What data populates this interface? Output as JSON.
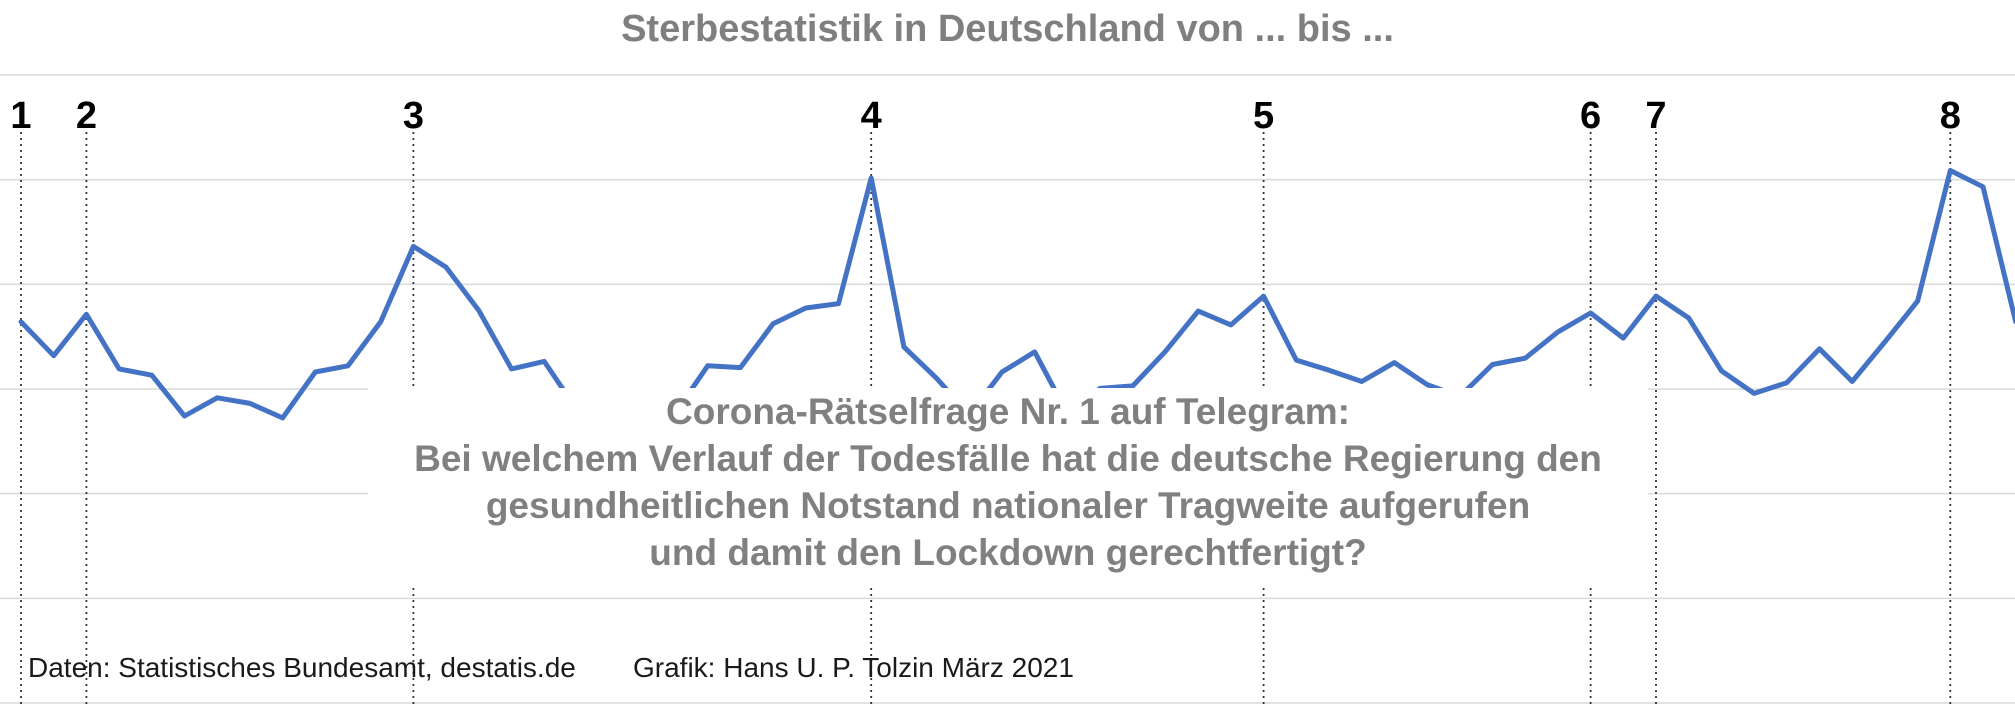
{
  "chart_data": {
    "type": "line",
    "title": "Sterbestatistik in Deutschland von ... bis ...",
    "xlabel": "",
    "ylabel": "",
    "ylim": [
      0,
      100
    ],
    "grid": true,
    "series": [
      {
        "color": "#4472c4",
        "values": [
          60.7,
          55.3,
          61.9,
          53.2,
          52.2,
          45.7,
          48.6,
          47.7,
          45.4,
          52.7,
          53.7,
          60.7,
          72.7,
          69.4,
          62.5,
          53.2,
          54.4,
          46.7,
          48.3,
          48.3,
          46.1,
          53.7,
          53.4,
          60.4,
          62.9,
          63.6,
          83.6,
          56.7,
          51.7,
          45.9,
          52.7,
          55.9,
          46.1,
          50.1,
          50.5,
          56.0,
          62.4,
          60.2,
          64.8,
          54.6,
          53.0,
          51.2,
          54.2,
          50.7,
          48.8,
          53.9,
          54.9,
          59.1,
          62.1,
          58.1,
          64.8,
          61.3,
          52.9,
          49.3,
          51.0,
          56.4,
          51.2,
          57.5,
          64.0,
          84.8,
          82.2,
          60.7
        ]
      }
    ],
    "markers": [
      {
        "label": "1",
        "index": 0
      },
      {
        "label": "2",
        "index": 2
      },
      {
        "label": "3",
        "index": 12
      },
      {
        "label": "4",
        "index": 26
      },
      {
        "label": "5",
        "index": 38
      },
      {
        "label": "6",
        "index": 48
      },
      {
        "label": "7",
        "index": 50
      },
      {
        "label": "8",
        "index": 59
      }
    ]
  },
  "question": {
    "lines": [
      "Corona-Rätselfrage Nr. 1 auf Telegram:",
      "Bei welchem Verlauf der Todesfälle hat die deutsche Regierung den",
      "gesundheitlichen Notstand nationaler Tragweite aufgerufen",
      "und damit den Lockdown gerechtfertigt?"
    ]
  },
  "source": {
    "data_credit": "Daten: Statistisches Bundesamt, destatis.de",
    "graphic_credit": "Grafik: Hans U. P. Tolzin März 2021"
  },
  "colors": {
    "line": "#4472c4",
    "title": "#7f7f7f",
    "question": "#808080",
    "grid": "#d9d9d9",
    "marker_line": "#333333"
  }
}
